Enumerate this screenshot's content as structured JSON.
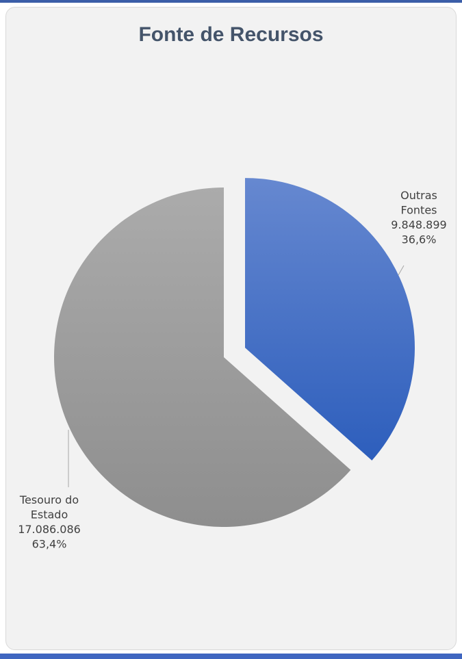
{
  "chart_data": {
    "type": "pie",
    "title": "Fonte de Recursos",
    "slices": [
      {
        "name_lines": [
          "Outras",
          "Fontes"
        ],
        "value": 9848899,
        "value_label": "9.848.899",
        "percent_label": "36,6%",
        "color": "#4472c4",
        "exploded": true
      },
      {
        "name_lines": [
          "Tesouro do",
          "Estado"
        ],
        "value": 17086086,
        "value_label": "17.086.086",
        "percent_label": "63,4%",
        "color": "#a5a5a5",
        "exploded": false
      }
    ],
    "start_angle_deg": 0,
    "direction": "clockwise",
    "legend": "none"
  }
}
